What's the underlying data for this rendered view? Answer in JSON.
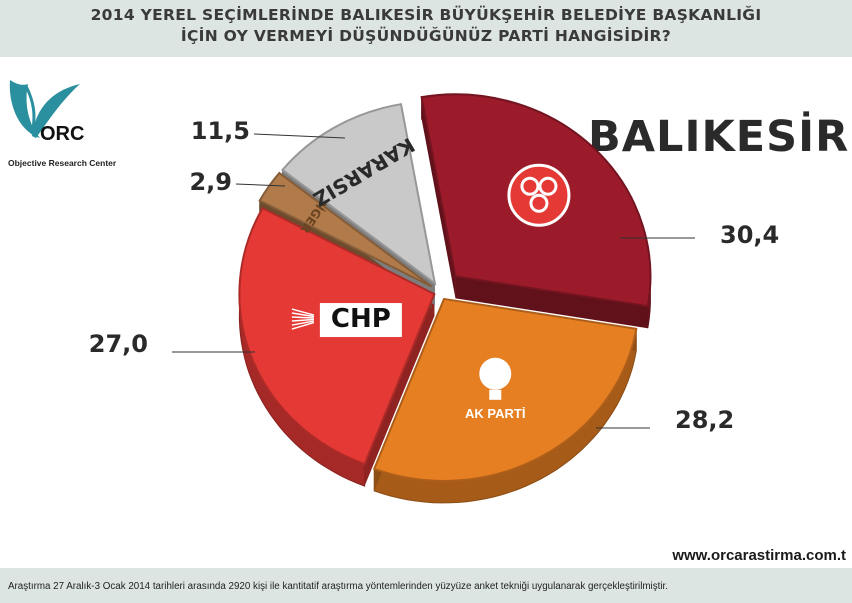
{
  "header": {
    "line1": "2014 YEREL SEÇİMLERİNDE BALIKESİR BÜYÜKŞEHİR BELEDİYE BAŞKANLIĞI",
    "line2": "İÇİN OY VERMEYİ DÜŞÜNDÜĞÜNÜZ PARTİ HANGİSİDİR?"
  },
  "logo": {
    "mark": "ORC",
    "caption": "Objective Research Center"
  },
  "city": "BALIKESİR",
  "website": "www.orcarastirma.com.t",
  "footnote": "Araştırma 27 Aralık-3 Ocak 2014 tarihleri arasında 2920 kişi ile kantitatif araştırma yöntemlerinden yüzyüze anket tekniği uygulanarak gerçekleştirilmiştir.",
  "chart_data": {
    "type": "pie",
    "slices": [
      {
        "label": "MHP",
        "value": 30.4,
        "value_label": "30,4",
        "color": "#9b1b2a"
      },
      {
        "label": "AK PARTİ",
        "value": 28.2,
        "value_label": "28,2",
        "color": "#e67e22"
      },
      {
        "label": "CHP",
        "value": 27.0,
        "value_label": "27,0",
        "color": "#e53935"
      },
      {
        "label": "DİGER",
        "value": 2.9,
        "value_label": "2,9",
        "color": "#b07a4a"
      },
      {
        "label": "KARARSIZ",
        "value": 11.5,
        "value_label": "11,5",
        "color": "#c9c9c9"
      }
    ]
  }
}
